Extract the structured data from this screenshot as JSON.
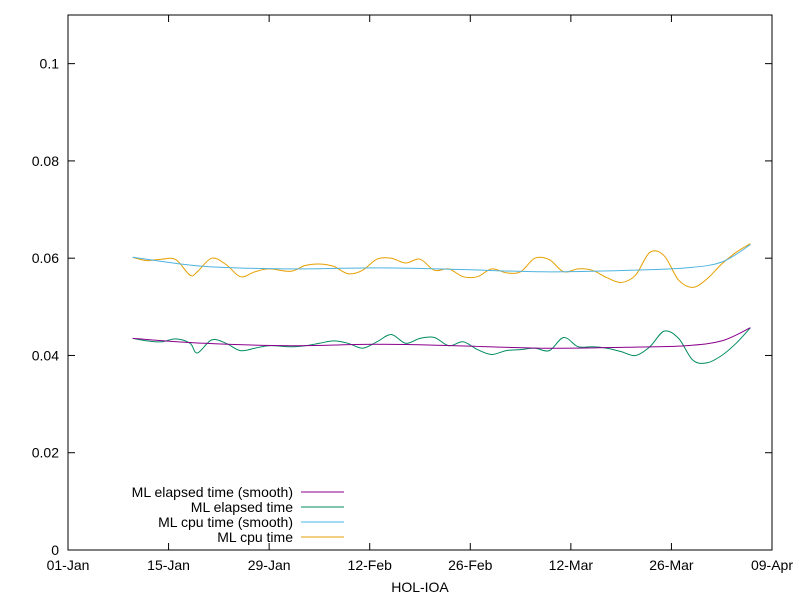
{
  "chart_data": {
    "type": "line",
    "title": "",
    "xlabel": "HOL-IOA",
    "ylabel": "",
    "x_ticks": [
      "01-Jan",
      "15-Jan",
      "29-Jan",
      "12-Feb",
      "26-Feb",
      "12-Mar",
      "26-Mar",
      "09-Apr"
    ],
    "y_ticks": [
      "0",
      "0.02",
      "0.04",
      "0.06",
      "0.08",
      "0.1"
    ],
    "ylim": [
      0,
      0.11
    ],
    "xlim": [
      "01-Jan",
      "09-Apr"
    ],
    "grid": false,
    "legend_position": "bottom-left",
    "series": [
      {
        "name": "ML elapsed time (smooth)",
        "color": "#8b008b",
        "x": [
          "10-Jan",
          "20-Jan",
          "01-Feb",
          "13-Feb",
          "24-Feb",
          "08-Mar",
          "20-Mar",
          "28-Mar",
          "02-Apr",
          "06-Apr"
        ],
        "y": [
          0.0435,
          0.0425,
          0.042,
          0.0423,
          0.042,
          0.0415,
          0.0417,
          0.042,
          0.043,
          0.0457
        ]
      },
      {
        "name": "ML elapsed time",
        "color": "#008b61",
        "x": [
          "10-Jan",
          "12-Jan",
          "14-Jan",
          "16-Jan",
          "18-Jan",
          "19-Jan",
          "21-Jan",
          "23-Jan",
          "25-Jan",
          "27-Jan",
          "29-Jan",
          "01-Feb",
          "03-Feb",
          "05-Feb",
          "07-Feb",
          "09-Feb",
          "11-Feb",
          "13-Feb",
          "15-Feb",
          "17-Feb",
          "19-Feb",
          "21-Feb",
          "23-Feb",
          "25-Feb",
          "27-Feb",
          "01-Mar",
          "03-Mar",
          "05-Mar",
          "07-Mar",
          "09-Mar",
          "11-Mar",
          "13-Mar",
          "15-Mar",
          "17-Mar",
          "19-Mar",
          "21-Mar",
          "23-Mar",
          "25-Mar",
          "27-Mar",
          "29-Mar",
          "31-Mar",
          "02-Apr",
          "04-Apr",
          "06-Apr"
        ],
        "y": [
          0.0435,
          0.043,
          0.0428,
          0.0434,
          0.0425,
          0.0405,
          0.0432,
          0.0425,
          0.041,
          0.0415,
          0.042,
          0.0418,
          0.042,
          0.0425,
          0.043,
          0.0425,
          0.0415,
          0.0428,
          0.0443,
          0.0425,
          0.0435,
          0.0437,
          0.042,
          0.0428,
          0.0412,
          0.0402,
          0.041,
          0.0412,
          0.0415,
          0.041,
          0.0437,
          0.0418,
          0.0418,
          0.0415,
          0.0408,
          0.04,
          0.0418,
          0.045,
          0.0435,
          0.039,
          0.0385,
          0.04,
          0.0425,
          0.0457
        ]
      },
      {
        "name": "ML cpu time (smooth)",
        "color": "#4fb3e0",
        "x": [
          "10-Jan",
          "20-Jan",
          "01-Feb",
          "13-Feb",
          "24-Feb",
          "08-Mar",
          "20-Mar",
          "28-Mar",
          "02-Apr",
          "06-Apr"
        ],
        "y": [
          0.0602,
          0.0583,
          0.0578,
          0.058,
          0.0577,
          0.0572,
          0.0575,
          0.058,
          0.0592,
          0.0628
        ]
      },
      {
        "name": "ML cpu time",
        "color": "#e69f00",
        "x": [
          "10-Jan",
          "12-Jan",
          "14-Jan",
          "16-Jan",
          "18-Jan",
          "19-Jan",
          "21-Jan",
          "23-Jan",
          "25-Jan",
          "27-Jan",
          "29-Jan",
          "01-Feb",
          "03-Feb",
          "05-Feb",
          "07-Feb",
          "09-Feb",
          "11-Feb",
          "13-Feb",
          "15-Feb",
          "17-Feb",
          "19-Feb",
          "21-Feb",
          "23-Feb",
          "25-Feb",
          "27-Feb",
          "01-Mar",
          "03-Mar",
          "05-Mar",
          "07-Mar",
          "09-Mar",
          "11-Mar",
          "13-Mar",
          "15-Mar",
          "17-Mar",
          "19-Mar",
          "21-Mar",
          "23-Mar",
          "25-Mar",
          "27-Mar",
          "29-Mar",
          "31-Mar",
          "02-Apr",
          "04-Apr",
          "06-Apr"
        ],
        "y": [
          0.0602,
          0.0595,
          0.0598,
          0.0597,
          0.0565,
          0.0572,
          0.06,
          0.0587,
          0.0562,
          0.0572,
          0.0578,
          0.0573,
          0.0585,
          0.0588,
          0.0583,
          0.0568,
          0.0575,
          0.0598,
          0.06,
          0.059,
          0.0598,
          0.0575,
          0.0578,
          0.0562,
          0.0562,
          0.0578,
          0.057,
          0.0572,
          0.06,
          0.0597,
          0.0572,
          0.0578,
          0.0575,
          0.056,
          0.055,
          0.0565,
          0.0612,
          0.0605,
          0.0555,
          0.054,
          0.0558,
          0.0588,
          0.0612,
          0.063
        ]
      }
    ]
  }
}
